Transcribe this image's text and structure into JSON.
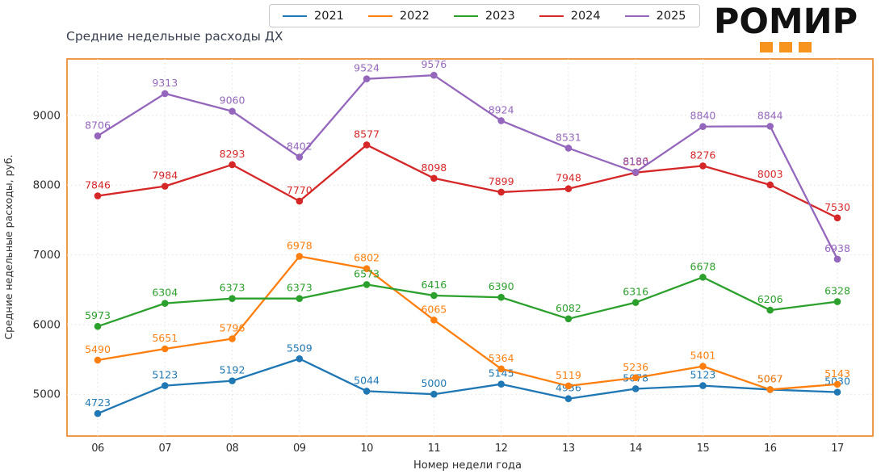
{
  "header": {
    "logo_text": "РОМИР",
    "logo_accent_color": "#f7941d",
    "logo_squares": 3
  },
  "chart_data": {
    "type": "line",
    "title": "Средние недельные расходы ДХ",
    "xlabel": "Номер недели года",
    "ylabel": "Средние недельные расходы, руб.",
    "x_ticks": [
      "06",
      "07",
      "08",
      "09",
      "10",
      "11",
      "12",
      "13",
      "14",
      "15",
      "16",
      "17"
    ],
    "y_ticks": [
      5000,
      6000,
      7000,
      8000,
      9000
    ],
    "ylim": [
      4400,
      9810
    ],
    "grid": true,
    "grid_style": "dashed",
    "grid_color": "#efe4e4",
    "plot_border_color": "#e8821e",
    "legend_position": "top-center",
    "tick_color": "#2e2e2e",
    "series": [
      {
        "name": "2021",
        "color": "#1f77b4",
        "values": [
          4723,
          5123,
          5192,
          5509,
          5044,
          5000,
          5145,
          4936,
          5078,
          5123,
          5067,
          5030
        ]
      },
      {
        "name": "2022",
        "color": "#ff7f0e",
        "values": [
          5490,
          5651,
          5796,
          6978,
          6802,
          6065,
          5364,
          5119,
          5236,
          5401,
          5067,
          5143
        ]
      },
      {
        "name": "2023",
        "color": "#2ca02c",
        "values": [
          5973,
          6304,
          6373,
          6373,
          6573,
          6416,
          6390,
          6082,
          6316,
          6678,
          6206,
          6328
        ]
      },
      {
        "name": "2024",
        "color": "#d62728",
        "values": [
          7846,
          7984,
          8293,
          7770,
          8577,
          8098,
          7899,
          7948,
          8180,
          8276,
          8003,
          7530
        ]
      },
      {
        "name": "2025",
        "color": "#9467bd",
        "values": [
          8706,
          9313,
          9060,
          8402,
          9524,
          9576,
          8924,
          8531,
          8186,
          8840,
          8844,
          6938
        ]
      }
    ]
  }
}
